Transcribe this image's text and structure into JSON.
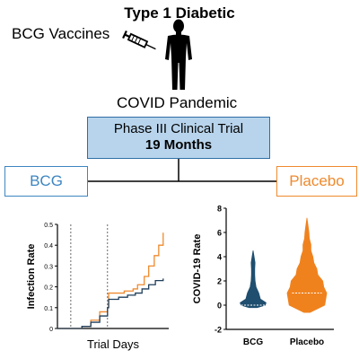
{
  "header": {
    "title": "Type 1 Diabetic",
    "vaccine_label": "BCG Vaccines",
    "pandemic_label": "COVID Pandemic"
  },
  "trial": {
    "phase": "Phase III Clinical Trial",
    "duration": "19 Months"
  },
  "arms": {
    "bcg": "BCG",
    "placebo": "Placebo"
  },
  "colors": {
    "bcg_line": "#1f3e5a",
    "placebo_line": "#ef8a2e",
    "bcg_violin": "#1f4e6e",
    "placebo_violin": "#f0821e",
    "trial_box_fill": "#b8d4ec"
  },
  "chart_data": [
    {
      "type": "line",
      "xlabel": "Trial Days",
      "ylabel": "Infection Rate",
      "ylim": [
        0,
        0.5
      ],
      "yticks": [
        "0",
        "0.1",
        "0.2",
        "0.3",
        "0.4",
        "0.5"
      ],
      "x_range": [
        0,
        100
      ],
      "reference_lines_x": [
        12,
        45
      ],
      "series": [
        {
          "color": "#ef8a2e",
          "points": [
            [
              0,
              0
            ],
            [
              12,
              0
            ],
            [
              22,
              0.01
            ],
            [
              30,
              0.04
            ],
            [
              38,
              0.08
            ],
            [
              45,
              0.1
            ],
            [
              46,
              0.17
            ],
            [
              55,
              0.17
            ],
            [
              60,
              0.18
            ],
            [
              68,
              0.19
            ],
            [
              72,
              0.21
            ],
            [
              78,
              0.25
            ],
            [
              82,
              0.3
            ],
            [
              87,
              0.35
            ],
            [
              91,
              0.4
            ],
            [
              95,
              0.46
            ]
          ]
        },
        {
          "color": "#1f3e5a",
          "points": [
            [
              0,
              0
            ],
            [
              12,
              0
            ],
            [
              22,
              0.01
            ],
            [
              30,
              0.03
            ],
            [
              38,
              0.06
            ],
            [
              45,
              0.1
            ],
            [
              46,
              0.14
            ],
            [
              55,
              0.15
            ],
            [
              63,
              0.16
            ],
            [
              70,
              0.17
            ],
            [
              76,
              0.19
            ],
            [
              82,
              0.21
            ],
            [
              88,
              0.23
            ],
            [
              95,
              0.24
            ]
          ]
        }
      ]
    },
    {
      "type": "violin",
      "ylabel": "COVID-19 Rate",
      "ylim": [
        -2,
        8
      ],
      "yticks": [
        "-2",
        "0",
        "2",
        "4",
        "6",
        "8"
      ],
      "categories": [
        "BCG",
        "Placebo"
      ],
      "series": [
        {
          "name": "BCG",
          "color": "#1f4e6e",
          "median": 0,
          "range": [
            -0.2,
            4.5
          ],
          "profile": [
            [
              -0.2,
              0.25
            ],
            [
              0,
              0.75
            ],
            [
              0.2,
              0.8
            ],
            [
              0.5,
              0.45
            ],
            [
              1.0,
              0.35
            ],
            [
              1.5,
              0.18
            ],
            [
              2.0,
              0.12
            ],
            [
              2.5,
              0.1
            ],
            [
              3.0,
              0.1
            ],
            [
              3.5,
              0.12
            ],
            [
              4.0,
              0.06
            ],
            [
              4.5,
              0
            ]
          ]
        },
        {
          "name": "Placebo",
          "color": "#f0821e",
          "median": 1.0,
          "range": [
            -0.6,
            7.2
          ],
          "profile": [
            [
              -0.6,
              0.15
            ],
            [
              0,
              0.9
            ],
            [
              0.5,
              0.95
            ],
            [
              1.0,
              1.0
            ],
            [
              1.5,
              0.85
            ],
            [
              2.0,
              0.8
            ],
            [
              2.5,
              0.55
            ],
            [
              3.0,
              0.5
            ],
            [
              3.5,
              0.35
            ],
            [
              4.0,
              0.3
            ],
            [
              4.5,
              0.2
            ],
            [
              5.0,
              0.2
            ],
            [
              5.5,
              0.12
            ],
            [
              6.0,
              0.1
            ],
            [
              6.5,
              0.06
            ],
            [
              7.2,
              0
            ]
          ]
        }
      ]
    }
  ]
}
